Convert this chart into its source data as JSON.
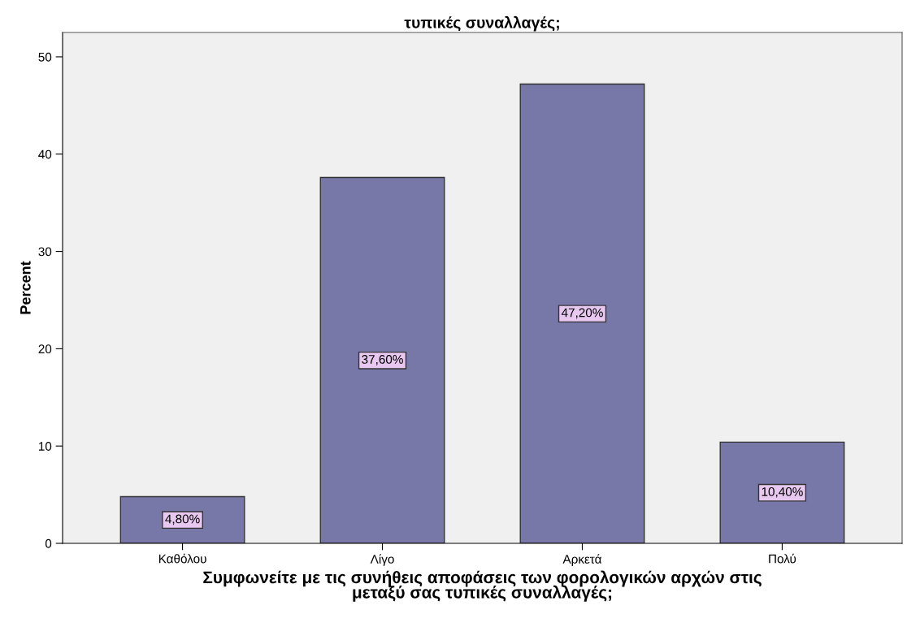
{
  "chart_data": {
    "type": "bar",
    "title": "τυπικές συναλλαγές;",
    "xlabel": "Συμφωνείτε με τις συνήθεις αποφάσεις των φορολογικών αρχών στις\nμεταξύ σας τυπικές συναλλαγές;",
    "ylabel": "Percent",
    "categories": [
      "Καθόλου",
      "Λίγο",
      "Αρκετά",
      "Πολύ"
    ],
    "values": [
      4.8,
      37.6,
      47.2,
      10.4
    ],
    "value_labels": [
      "4,80%",
      "37,60%",
      "47,20%",
      "10,40%"
    ],
    "color": "#7878a8",
    "ylim": [
      0,
      52.5
    ],
    "yticks": [
      0,
      10,
      20,
      30,
      40,
      50
    ],
    "grid": false,
    "legend": false
  }
}
